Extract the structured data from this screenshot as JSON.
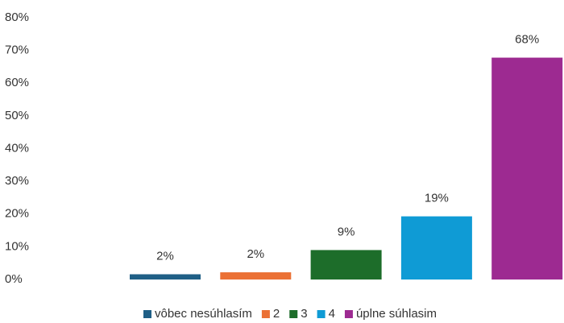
{
  "chart_data": {
    "type": "bar",
    "series": [
      {
        "name": "vôbec nesúhlasím",
        "color": "#1f5f86",
        "values": [
          1.6
        ],
        "value_labels": [
          "2%"
        ]
      },
      {
        "name": "2",
        "color": "#eb7135",
        "values": [
          2.2
        ],
        "value_labels": [
          "2%"
        ]
      },
      {
        "name": "3",
        "color": "#1d6d2a",
        "values": [
          9
        ],
        "value_labels": [
          "9%"
        ]
      },
      {
        "name": "4",
        "color": "#0f9bd5",
        "values": [
          19.3
        ],
        "value_labels": [
          "19%"
        ]
      },
      {
        "name": "úplne súhlasim",
        "color": "#9d2a91",
        "values": [
          67.8
        ],
        "value_labels": [
          "68%"
        ]
      }
    ],
    "ylim": [
      0,
      80
    ],
    "yticks": [
      {
        "value": 0,
        "label": "0%"
      },
      {
        "value": 10,
        "label": "10%"
      },
      {
        "value": 20,
        "label": "20%"
      },
      {
        "value": 30,
        "label": "30%"
      },
      {
        "value": 40,
        "label": "40%"
      },
      {
        "value": 50,
        "label": "50%"
      },
      {
        "value": 60,
        "label": "60%"
      },
      {
        "value": 70,
        "label": "70%"
      },
      {
        "value": 80,
        "label": "80%"
      }
    ],
    "grid": false,
    "legend": "bottom"
  }
}
